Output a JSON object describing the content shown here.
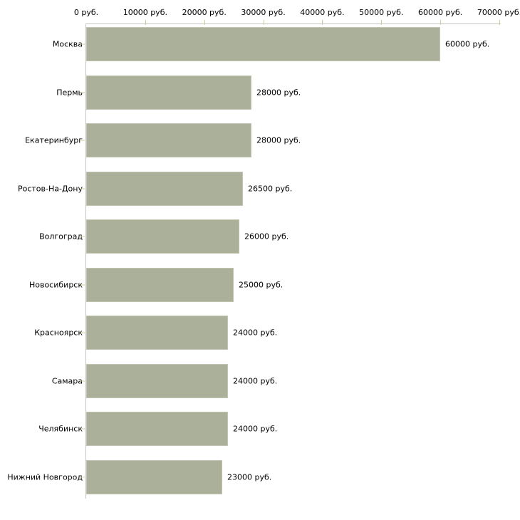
{
  "chart_data": {
    "type": "bar",
    "orientation": "horizontal",
    "title": "",
    "xlabel": "",
    "ylabel": "",
    "unit": "руб.",
    "xlim": [
      0,
      70000
    ],
    "x_tick_step": 10000,
    "grid": false,
    "legend_position": "none",
    "x_ticks": [
      "0 руб.",
      "10000 руб.",
      "20000 руб.",
      "30000 руб.",
      "40000 руб.",
      "50000 руб.",
      "60000 руб.",
      "70000 руб."
    ],
    "categories": [
      "Москва",
      "Пермь",
      "Екатеринбург",
      "Ростов-На-Дону",
      "Волгоград",
      "Новосибирск",
      "Красноярск",
      "Самара",
      "Челябинск",
      "Нижний Новгород"
    ],
    "values": [
      60000,
      28000,
      28000,
      26500,
      26000,
      25000,
      24000,
      24000,
      24000,
      23000
    ],
    "value_labels": [
      "60000 руб.",
      "28000 руб.",
      "28000 руб.",
      "26500 руб.",
      "26000 руб.",
      "25000 руб.",
      "24000 руб.",
      "24000 руб.",
      "24000 руб.",
      "23000 руб."
    ],
    "colors": {
      "background": "#ffffff",
      "bar_fill": "#aab099",
      "bar_border": "#c2c6b0",
      "axis_line": "#c3c3c3",
      "tick_mark": "#cccc99",
      "text": "#000000"
    }
  }
}
